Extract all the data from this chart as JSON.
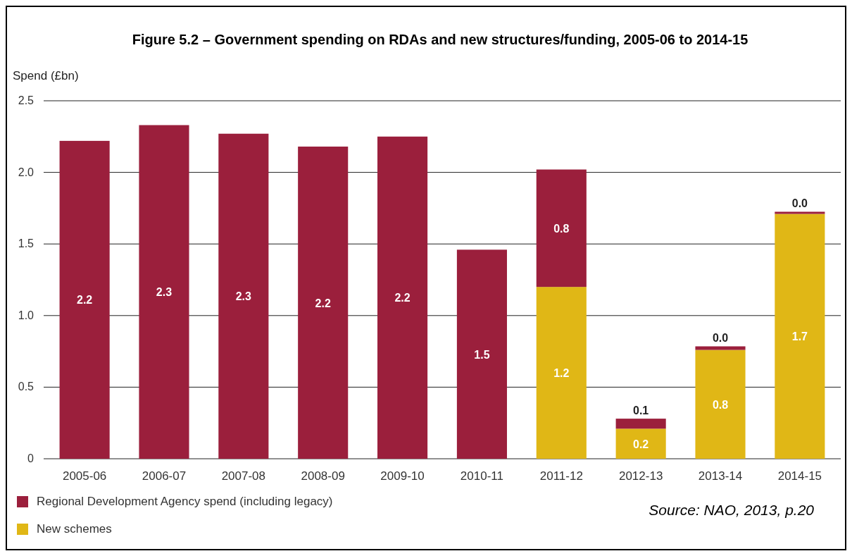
{
  "chart_data": {
    "type": "bar",
    "title": "Figure 5.2 – Government spending on RDAs and new structures/funding, 2005-06 to 2014-15",
    "ylabel": "Spend (£bn)",
    "categories": [
      "2005-06",
      "2006-07",
      "2007-08",
      "2008-09",
      "2009-10",
      "2010-11",
      "2011-12",
      "2012-13",
      "2013-14",
      "2014-15"
    ],
    "stacked": true,
    "series": [
      {
        "name": "New schemes",
        "color": "#e0b716",
        "values": [
          null,
          null,
          null,
          null,
          null,
          null,
          1.2,
          0.21,
          0.76,
          1.71
        ],
        "value_labels": [
          null,
          null,
          null,
          null,
          null,
          null,
          "1.2",
          "0.2",
          "0.8",
          "1.7"
        ]
      },
      {
        "name": "Regional Development Agency spend (including legacy)",
        "color": "#9b1f3c",
        "values": [
          2.22,
          2.33,
          2.27,
          2.18,
          2.25,
          1.46,
          0.82,
          0.07,
          0.025,
          0.015
        ],
        "value_labels": [
          "2.2",
          "2.3",
          "2.3",
          "2.2",
          "2.2",
          "1.5",
          "0.8",
          "0.1",
          "0.0",
          "0.0"
        ]
      }
    ],
    "ylim": [
      0,
      2.5
    ],
    "yticks": [
      0,
      {
        "value": 0.5,
        "label": "0.5"
      },
      {
        "value": 1,
        "label": "1.0"
      },
      {
        "value": 1.5,
        "label": "1.5"
      },
      {
        "value": 2,
        "label": "2.0"
      },
      {
        "value": 2.5,
        "label": "2.5"
      }
    ],
    "grid": "y",
    "legend": "bottom",
    "annotations": [
      "Source: NAO, 2013, p.20"
    ]
  }
}
